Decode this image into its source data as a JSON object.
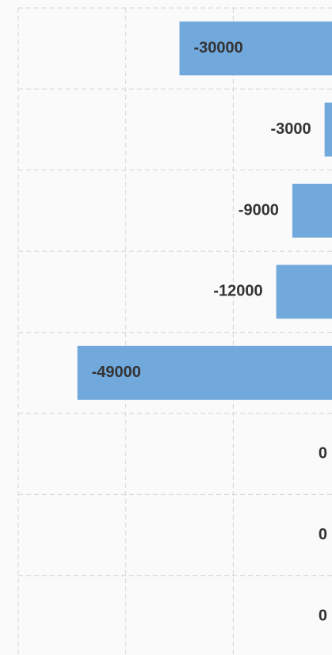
{
  "chart_data": {
    "type": "horizontal_bar",
    "categories": [
      null,
      null,
      null,
      null,
      null,
      null,
      null,
      null
    ],
    "values": [
      -30000,
      -3000,
      -9000,
      -12000,
      -49000,
      0,
      0,
      0
    ],
    "color": "#72a9dd",
    "xlim": [
      -60000,
      0
    ],
    "xticks": [
      -60000,
      -40000,
      -20000
    ],
    "grid": true
  }
}
